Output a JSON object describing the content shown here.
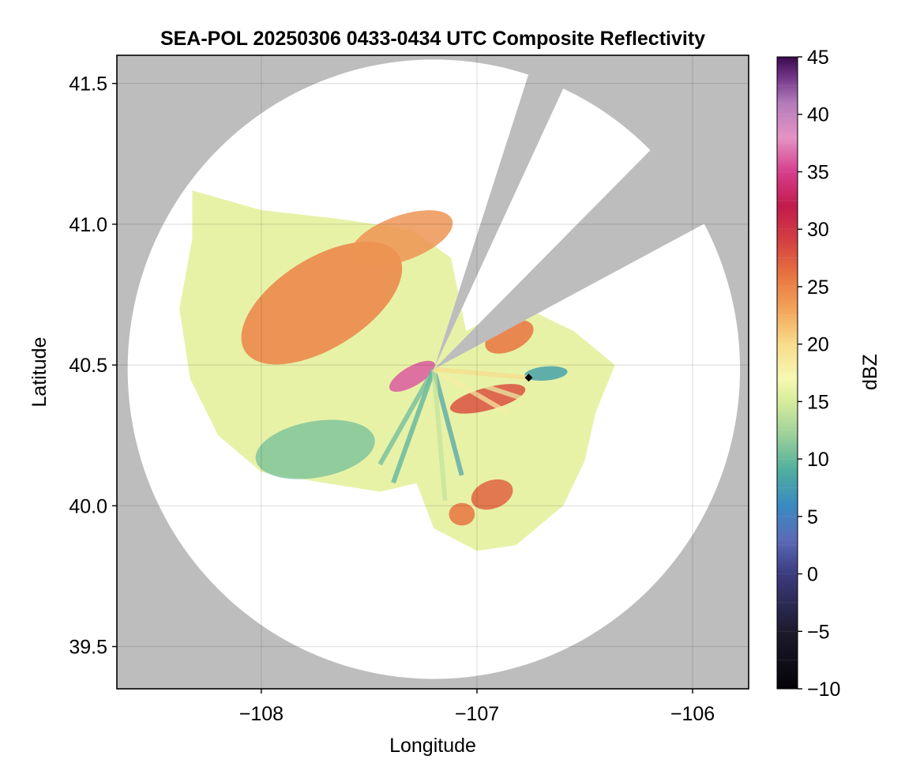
{
  "chart_data": {
    "type": "heatmap",
    "title": "SEA-POL 20250306 0433-0434 UTC Composite Reflectivity",
    "xlabel": "Longitude",
    "ylabel": "Latitude",
    "xlim": [
      -108.67,
      -105.74
    ],
    "ylim": [
      39.35,
      41.6
    ],
    "xticks": [
      -108,
      -107,
      -106
    ],
    "xtick_labels": [
      "−108",
      "−107",
      "−106"
    ],
    "yticks": [
      39.5,
      40.0,
      40.5,
      41.0,
      41.5
    ],
    "ytick_labels": [
      "39.5",
      "40.0",
      "40.5",
      "41.0",
      "41.5"
    ],
    "grid": true,
    "background_color": "#bdbdbd",
    "coverage_color": "#ffffff",
    "radar": {
      "center_lon": -107.2,
      "center_lat": 40.485,
      "max_range_lon": 1.42,
      "max_range_lat": 1.1,
      "blocked_sectors_deg": [
        [
          18,
          25
        ],
        [
          45,
          62
        ]
      ],
      "marker": {
        "lon": -106.76,
        "lat": 40.455,
        "color": "#000000"
      }
    },
    "colorbar": {
      "label": "dBZ",
      "min": -10,
      "max": 45,
      "ticks": [
        -10,
        -5,
        0,
        5,
        10,
        15,
        20,
        25,
        30,
        35,
        40,
        45
      ],
      "tick_labels": [
        "−10",
        "−5",
        "0",
        "5",
        "10",
        "15",
        "20",
        "25",
        "30",
        "35",
        "40",
        "45"
      ],
      "colormap": [
        [
          -10,
          "#050308"
        ],
        [
          -5,
          "#1d1a2c"
        ],
        [
          0,
          "#3c3b80"
        ],
        [
          3,
          "#5a6bb8"
        ],
        [
          6,
          "#3a8bc0"
        ],
        [
          9,
          "#4fae9e"
        ],
        [
          12,
          "#9ad09a"
        ],
        [
          15,
          "#d7ec9b"
        ],
        [
          17,
          "#f6f8b2"
        ],
        [
          20,
          "#f8dc8a"
        ],
        [
          23,
          "#f2a45a"
        ],
        [
          26,
          "#e7743f"
        ],
        [
          29,
          "#d34041"
        ],
        [
          32,
          "#c21b4c"
        ],
        [
          35,
          "#d63f8c"
        ],
        [
          38,
          "#e593c4"
        ],
        [
          41,
          "#b37bba"
        ],
        [
          43,
          "#7a3c8e"
        ],
        [
          45,
          "#3a0a4f"
        ]
      ]
    },
    "echo_regions": [
      {
        "name": "northwest-stratiform-band",
        "lon": -107.72,
        "lat": 40.72,
        "rx_deg": 0.42,
        "ry_deg": 0.16,
        "angle": -32,
        "dbz": 25
      },
      {
        "name": "core-near-radar",
        "lon": -107.3,
        "lat": 40.46,
        "rx_deg": 0.12,
        "ry_deg": 0.035,
        "angle": -30,
        "dbz": 36
      },
      {
        "name": "north-band",
        "lon": -107.35,
        "lat": 40.95,
        "rx_deg": 0.25,
        "ry_deg": 0.08,
        "angle": -20,
        "dbz": 24
      },
      {
        "name": "east-cell",
        "lon": -106.85,
        "lat": 40.6,
        "rx_deg": 0.12,
        "ry_deg": 0.05,
        "angle": -25,
        "dbz": 26
      },
      {
        "name": "southeast-band",
        "lon": -106.95,
        "lat": 40.38,
        "rx_deg": 0.18,
        "ry_deg": 0.04,
        "angle": -15,
        "dbz": 28
      },
      {
        "name": "southeast-cell",
        "lon": -106.93,
        "lat": 40.04,
        "rx_deg": 0.1,
        "ry_deg": 0.05,
        "angle": -20,
        "dbz": 27
      },
      {
        "name": "south-cell",
        "lon": -107.07,
        "lat": 39.97,
        "rx_deg": 0.06,
        "ry_deg": 0.04,
        "angle": 0,
        "dbz": 26
      },
      {
        "name": "southwest-weak-area",
        "lon": -107.75,
        "lat": 40.2,
        "rx_deg": 0.28,
        "ry_deg": 0.1,
        "angle": -10,
        "dbz": 11
      },
      {
        "name": "east-weak-band",
        "lon": -106.68,
        "lat": 40.47,
        "rx_deg": 0.1,
        "ry_deg": 0.025,
        "angle": -5,
        "dbz": 8
      }
    ]
  }
}
